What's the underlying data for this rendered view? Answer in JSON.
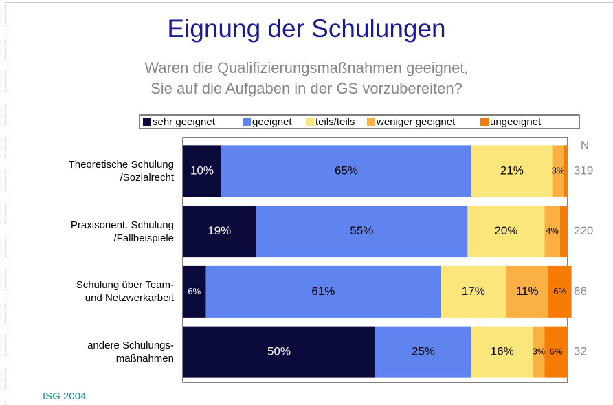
{
  "chart_data": {
    "type": "stacked_barh",
    "title": "Eignung der Schulungen",
    "subtitle": [
      "Waren die Qualifizierungsmaßnahmen geeignet,",
      "Sie auf die Aufgaben in der GS vorzubereiten?"
    ],
    "categories": [
      "Theoretische Schulung\n/Sozialrecht",
      "Praxisorient. Schulung\n/Fallbeispiele",
      "Schulung über Team-\nund Netzwerkarbeit",
      "andere Schulungs-\nmaßnahmen"
    ],
    "series": [
      {
        "name": "sehr geeignet",
        "color": "#0b0b3b",
        "values": [
          10,
          19,
          6,
          50
        ],
        "value_labels": [
          "10%",
          "19%",
          "6%",
          "50%"
        ]
      },
      {
        "name": "geeignet",
        "color": "#5f84f0",
        "values": [
          65,
          55,
          61,
          25
        ],
        "value_labels": [
          "65%",
          "55%",
          "61%",
          "25%"
        ]
      },
      {
        "name": "teils/teils",
        "color": "#fbe67c",
        "values": [
          21,
          20,
          17,
          16
        ],
        "value_labels": [
          "21%",
          "20%",
          "17%",
          "16%"
        ]
      },
      {
        "name": "weniger geeignet",
        "color": "#fbb044",
        "values": [
          3,
          4,
          11,
          3
        ],
        "value_labels": [
          "3%",
          "4%",
          "11%",
          "3%"
        ]
      },
      {
        "name": "ungeeignet",
        "color": "#f77c05",
        "values": [
          1,
          2,
          6,
          6
        ],
        "value_labels": [
          null,
          null,
          "6%",
          "6%"
        ]
      }
    ],
    "xlim": [
      0,
      100
    ],
    "n_label": "N",
    "n_values": [
      319,
      220,
      66,
      32
    ],
    "source": "ISG 2004"
  }
}
